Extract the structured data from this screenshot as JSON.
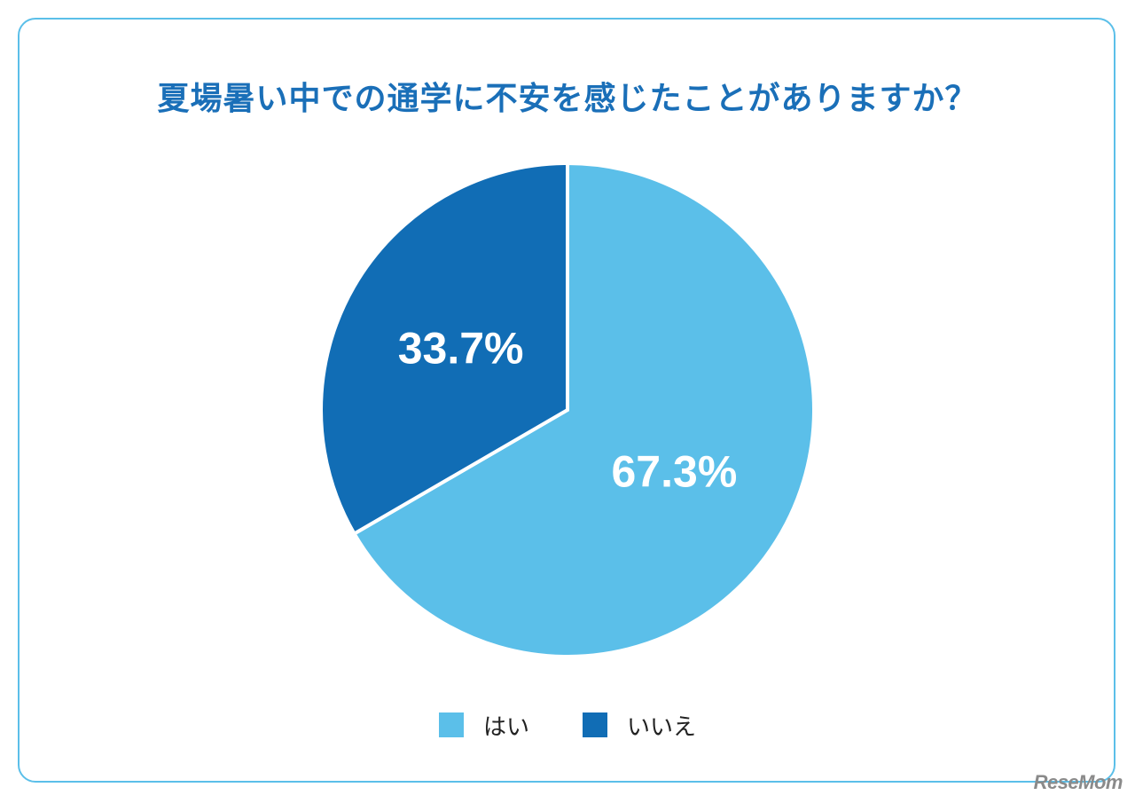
{
  "chart_data": {
    "type": "pie",
    "title": "夏場暑い中での通学に不安を感じたことがありますか？",
    "slices": [
      {
        "label": "はい",
        "value": 67.3,
        "display": "67.3%",
        "color": "#5bbfe9"
      },
      {
        "label": "いいえ",
        "value": 33.7,
        "display": "33.7%",
        "color": "#116db5"
      }
    ],
    "legend_position": "bottom"
  },
  "branding": {
    "logo": "ReseMom"
  },
  "colors": {
    "accent": "#1a6fb8",
    "frame": "#5bbfe9"
  }
}
